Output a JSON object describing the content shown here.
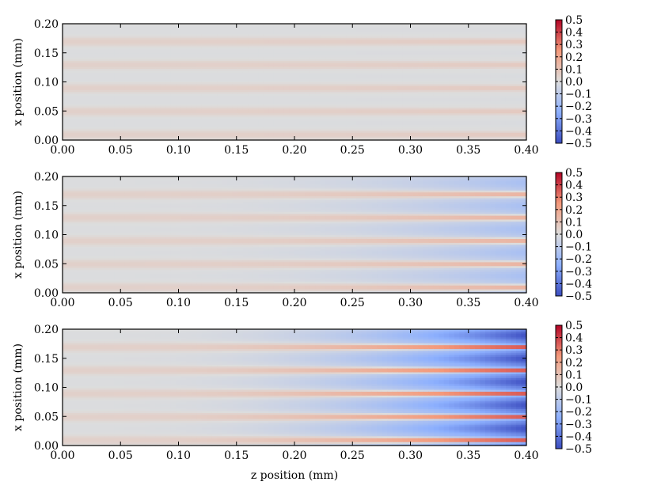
{
  "chart_data": {
    "type": "heatmap",
    "colormap": "coolwarm",
    "panels": [
      {
        "ylabel": "x position (mm)",
        "xlabel": "",
        "xlim": [
          0.0,
          0.4
        ],
        "ylim": [
          0.0,
          0.2
        ],
        "xticks": [
          "0.00",
          "0.05",
          "0.10",
          "0.15",
          "0.20",
          "0.25",
          "0.30",
          "0.35",
          "0.40"
        ],
        "yticks": [
          "0.00",
          "0.05",
          "0.10",
          "0.15",
          "0.20"
        ],
        "clim": [
          -0.5,
          0.5
        ],
        "colorbar_ticks": [
          "0.5",
          "0.4",
          "0.3",
          "0.2",
          "0.1",
          "0.0",
          "−0.1",
          "−0.2",
          "−0.3",
          "−0.4",
          "−0.5"
        ],
        "stripe_amplitude_start": 0.05,
        "stripe_amplitude_end": 0.08,
        "background_level_end": 0.0,
        "stripe_period_mm": 0.04
      },
      {
        "ylabel": "x position (mm)",
        "xlabel": "",
        "xlim": [
          0.0,
          0.4
        ],
        "ylim": [
          0.0,
          0.2
        ],
        "xticks": [
          "0.00",
          "0.05",
          "0.10",
          "0.15",
          "0.20",
          "0.25",
          "0.30",
          "0.35",
          "0.40"
        ],
        "yticks": [
          "0.00",
          "0.05",
          "0.10",
          "0.15",
          "0.20"
        ],
        "clim": [
          -0.5,
          0.5
        ],
        "colorbar_ticks": [
          "0.5",
          "0.4",
          "0.3",
          "0.2",
          "0.1",
          "0.0",
          "−0.1",
          "−0.2",
          "−0.3",
          "−0.4",
          "−0.5"
        ],
        "stripe_amplitude_start": 0.05,
        "stripe_amplitude_end": 0.3,
        "background_level_end": -0.12,
        "stripe_period_mm": 0.04
      },
      {
        "ylabel": "x position (mm)",
        "xlabel": "z position (mm)",
        "xlim": [
          0.0,
          0.4
        ],
        "ylim": [
          0.0,
          0.2
        ],
        "xticks": [
          "0.00",
          "0.05",
          "0.10",
          "0.15",
          "0.20",
          "0.25",
          "0.30",
          "0.35",
          "0.40"
        ],
        "yticks": [
          "0.00",
          "0.05",
          "0.10",
          "0.15",
          "0.20"
        ],
        "clim": [
          -0.5,
          0.5
        ],
        "colorbar_ticks": [
          "0.5",
          "0.4",
          "0.3",
          "0.2",
          "0.1",
          "0.0",
          "−0.1",
          "−0.2",
          "−0.3",
          "−0.4",
          "−0.5"
        ],
        "stripe_amplitude_start": 0.05,
        "stripe_amplitude_end": 0.9,
        "background_level_end": -0.35,
        "stripe_period_mm": 0.04
      }
    ]
  }
}
